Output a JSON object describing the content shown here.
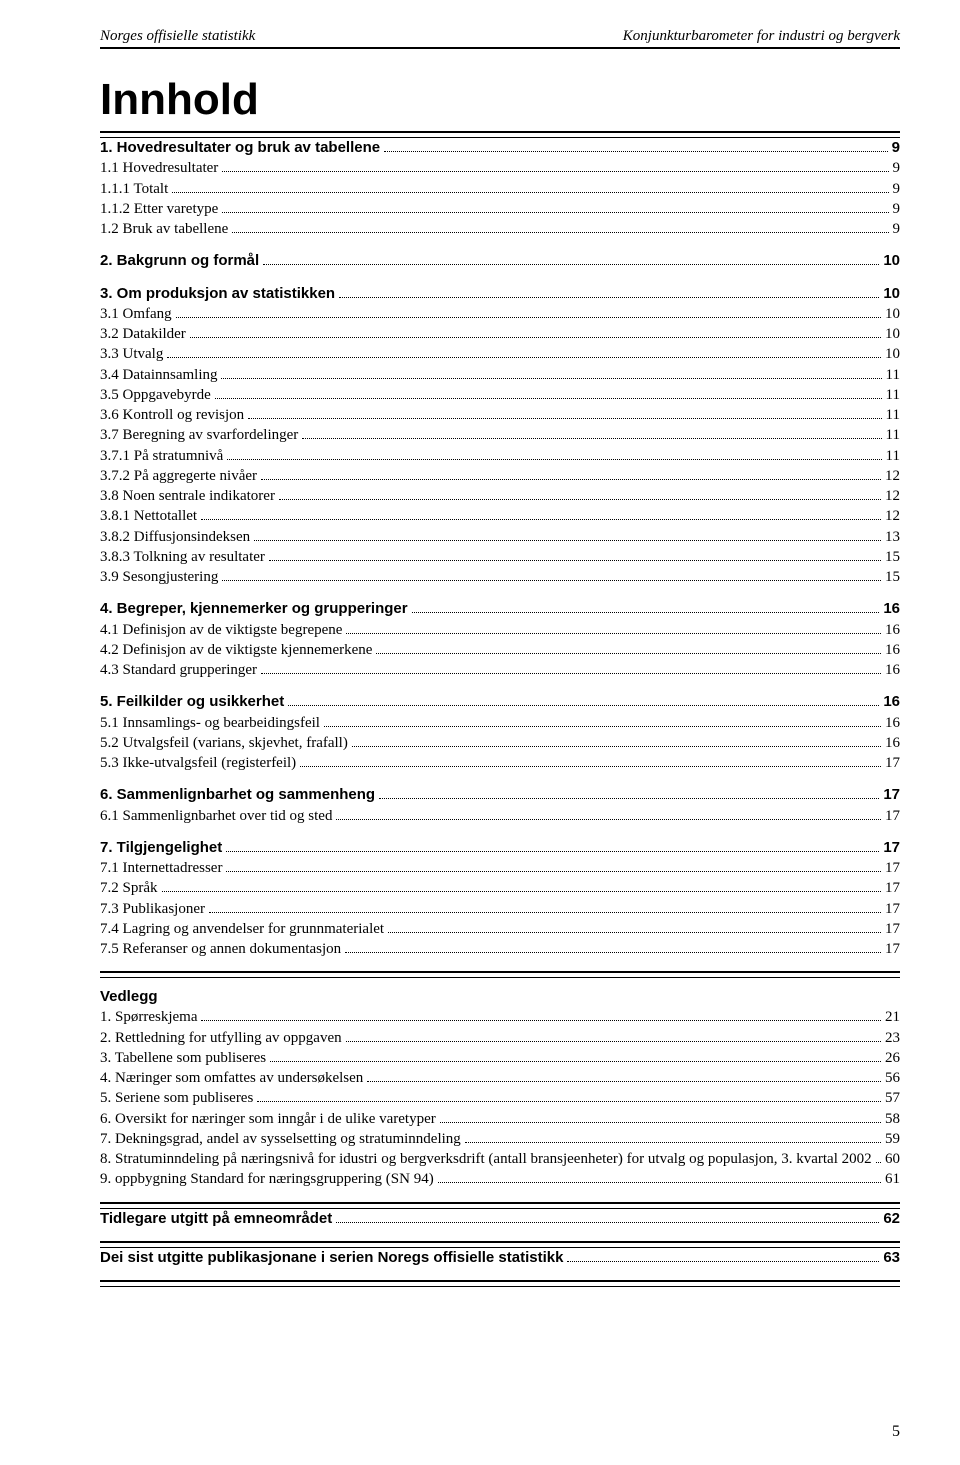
{
  "header": {
    "left": "Norges offisielle statistikk",
    "right": "Konjunkturbarometer for industri og bergverk"
  },
  "title": "Innhold",
  "sections": [
    {
      "type": "toc",
      "rule_before": true,
      "entries": [
        {
          "label": "1. Hovedresultater og bruk av tabellene",
          "page": "9",
          "bold": true
        },
        {
          "label": "1.1 Hovedresultater",
          "page": "9"
        },
        {
          "label": "1.1.1 Totalt",
          "page": "9"
        },
        {
          "label": "1.1.2 Etter varetype",
          "page": "9"
        },
        {
          "label": "1.2 Bruk av tabellene",
          "page": "9"
        }
      ]
    },
    {
      "type": "toc",
      "entries": [
        {
          "label": "2. Bakgrunn og formål",
          "page": "10",
          "bold": true
        }
      ]
    },
    {
      "type": "toc",
      "entries": [
        {
          "label": "3. Om produksjon av statistikken",
          "page": "10",
          "bold": true
        },
        {
          "label": "3.1 Omfang",
          "page": "10"
        },
        {
          "label": "3.2 Datakilder",
          "page": "10"
        },
        {
          "label": "3.3 Utvalg",
          "page": "10"
        },
        {
          "label": "3.4 Datainnsamling",
          "page": "11"
        },
        {
          "label": "3.5 Oppgavebyrde",
          "page": "11"
        },
        {
          "label": "3.6 Kontroll og revisjon",
          "page": "11"
        },
        {
          "label": "3.7 Beregning av svarfordelinger",
          "page": "11"
        },
        {
          "label": "3.7.1 På stratumnivå",
          "page": "11"
        },
        {
          "label": "3.7.2 På aggregerte nivåer",
          "page": "12"
        },
        {
          "label": "3.8 Noen sentrale indikatorer",
          "page": "12"
        },
        {
          "label": "3.8.1 Nettotallet",
          "page": "12"
        },
        {
          "label": "3.8.2 Diffusjonsindeksen",
          "page": "13"
        },
        {
          "label": "3.8.3 Tolkning av resultater",
          "page": "15"
        },
        {
          "label": "3.9 Sesongjustering",
          "page": "15"
        }
      ]
    },
    {
      "type": "toc",
      "entries": [
        {
          "label": "4. Begreper, kjennemerker og grupperinger",
          "page": "16",
          "bold": true
        },
        {
          "label": "4.1 Definisjon av de viktigste begrepene",
          "page": "16"
        },
        {
          "label": "4.2 Definisjon av de viktigste kjennemerkene",
          "page": "16"
        },
        {
          "label": "4.3 Standard grupperinger",
          "page": "16"
        }
      ]
    },
    {
      "type": "toc",
      "entries": [
        {
          "label": "5. Feilkilder og usikkerhet",
          "page": "16",
          "bold": true
        },
        {
          "label": "5.1 Innsamlings- og bearbeidingsfeil",
          "page": "16"
        },
        {
          "label": "5.2 Utvalgsfeil (varians, skjevhet, frafall)",
          "page": "16"
        },
        {
          "label": "5.3 Ikke-utvalgsfeil (registerfeil)",
          "page": "17"
        }
      ]
    },
    {
      "type": "toc",
      "entries": [
        {
          "label": "6. Sammenlignbarhet og sammenheng",
          "page": "17",
          "bold": true
        },
        {
          "label": "6.1 Sammenlignbarhet over tid og sted",
          "page": "17"
        }
      ]
    },
    {
      "type": "toc",
      "entries": [
        {
          "label": "7. Tilgjengelighet",
          "page": "17",
          "bold": true
        },
        {
          "label": "7.1 Internettadresser",
          "page": "17"
        },
        {
          "label": "7.2 Språk",
          "page": "17"
        },
        {
          "label": "7.3 Publikasjoner",
          "page": "17"
        },
        {
          "label": "7.4 Lagring og anvendelser for grunnmaterialet",
          "page": "17"
        },
        {
          "label": "7.5 Referanser og annen dokumentasjon",
          "page": "17"
        }
      ]
    },
    {
      "type": "heading_block",
      "rule_before": true,
      "heading": "Vedlegg",
      "entries": [
        {
          "label": "1. Spørreskjema",
          "page": "21"
        },
        {
          "label": "2. Rettledning for utfylling av oppgaven",
          "page": "23"
        },
        {
          "label": "3. Tabellene som publiseres",
          "page": "26"
        },
        {
          "label": "4. Næringer som omfattes av undersøkelsen",
          "page": "56"
        },
        {
          "label": "5. Seriene som publiseres",
          "page": "57"
        },
        {
          "label": "6. Oversikt for næringer som inngår i de ulike varetyper",
          "page": "58"
        },
        {
          "label": "7. Dekningsgrad, andel av sysselsetting og stratuminndeling",
          "page": "59"
        },
        {
          "label": "8. Stratuminndeling på næringsnivå for idustri og bergverksdrift (antall bransjeenheter) for utvalg og populasjon, 3. kvartal 2002",
          "page": "60",
          "wrap": true
        },
        {
          "label": "9. oppbygning Standard for næringsgruppering (SN 94)",
          "page": "61"
        }
      ]
    },
    {
      "type": "toc",
      "rule_before": true,
      "entries": [
        {
          "label": "Tidlegare utgitt på emneområdet",
          "page": "62",
          "bold": true
        }
      ]
    },
    {
      "type": "toc",
      "rule_before": true,
      "entries": [
        {
          "label": "Dei sist utgitte publikasjonane i serien Noregs offisielle statistikk",
          "page": "63",
          "bold": true
        }
      ],
      "rule_after": true
    }
  ],
  "page_number": "5"
}
